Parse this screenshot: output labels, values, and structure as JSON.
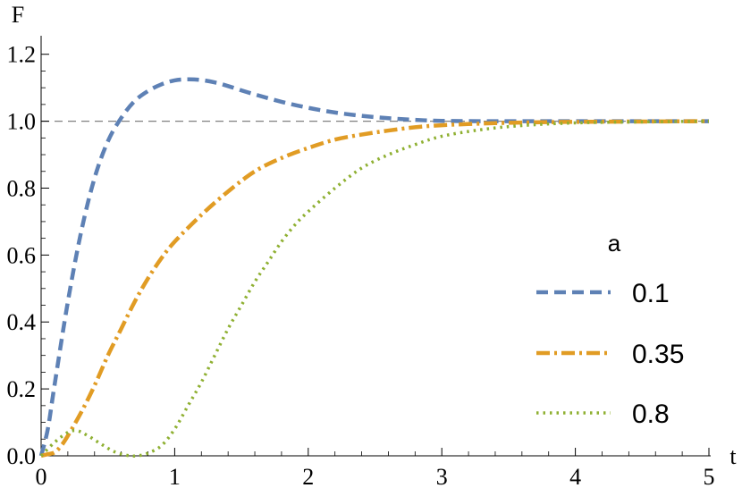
{
  "chart_data": {
    "type": "line",
    "xlabel": "t",
    "ylabel": "F",
    "xlim": [
      0,
      5
    ],
    "ylim": [
      0,
      1.25
    ],
    "x_ticks": [
      0,
      1,
      2,
      3,
      4,
      5
    ],
    "x_tick_labels": [
      "0",
      "1",
      "2",
      "3",
      "4",
      "5"
    ],
    "y_ticks": [
      0,
      0.2,
      0.4,
      0.6,
      0.8,
      1.0,
      1.2
    ],
    "y_tick_labels": [
      "0.0",
      "0.2",
      "0.4",
      "0.6",
      "0.8",
      "1.0",
      "1.2"
    ],
    "reference_line": {
      "y": 1.0,
      "style": "dashed",
      "color": "#808080"
    },
    "legend": {
      "title": "a",
      "placement": "right"
    },
    "series": [
      {
        "name": "0.1",
        "color": "#5e81b5",
        "dash": "dashed",
        "x": [
          0,
          0.05,
          0.1,
          0.2,
          0.3,
          0.4,
          0.5,
          0.6,
          0.7,
          0.8,
          0.9,
          1.0,
          1.1,
          1.2,
          1.3,
          1.4,
          1.5,
          1.6,
          1.8,
          2.0,
          2.2,
          2.4,
          2.6,
          2.8,
          3.0,
          3.3,
          3.6,
          4.0,
          4.5,
          5.0
        ],
        "y": [
          0,
          0.08,
          0.21,
          0.46,
          0.67,
          0.83,
          0.94,
          1.01,
          1.06,
          1.09,
          1.11,
          1.122,
          1.125,
          1.123,
          1.116,
          1.105,
          1.092,
          1.08,
          1.058,
          1.04,
          1.026,
          1.016,
          1.009,
          1.004,
          1.001,
          1.0,
          1.0,
          1.0,
          1.0,
          1.0
        ]
      },
      {
        "name": "0.35",
        "color": "#e19c24",
        "dash": "dash-dot",
        "x": [
          0,
          0.05,
          0.1,
          0.15,
          0.2,
          0.3,
          0.4,
          0.5,
          0.6,
          0.7,
          0.8,
          0.9,
          1.0,
          1.2,
          1.4,
          1.6,
          1.8,
          2.0,
          2.2,
          2.4,
          2.6,
          2.8,
          3.0,
          3.3,
          3.6,
          4.0,
          4.5,
          5.0
        ],
        "y": [
          0,
          0.005,
          0.01,
          0.03,
          0.06,
          0.13,
          0.21,
          0.3,
          0.38,
          0.46,
          0.53,
          0.59,
          0.64,
          0.72,
          0.79,
          0.85,
          0.89,
          0.92,
          0.945,
          0.96,
          0.972,
          0.982,
          0.988,
          0.993,
          0.996,
          0.998,
          0.999,
          1.0
        ]
      },
      {
        "name": "0.8",
        "color": "#8fb032",
        "dash": "dotted",
        "x": [
          0,
          0.1,
          0.2,
          0.27,
          0.35,
          0.45,
          0.55,
          0.65,
          0.72,
          0.8,
          0.9,
          1.0,
          1.1,
          1.2,
          1.3,
          1.4,
          1.5,
          1.6,
          1.7,
          1.8,
          1.9,
          2.0,
          2.2,
          2.4,
          2.6,
          2.8,
          3.0,
          3.3,
          3.6,
          4.0,
          4.5,
          5.0
        ],
        "y": [
          0,
          0.04,
          0.07,
          0.075,
          0.06,
          0.035,
          0.012,
          0.001,
          0.0,
          0.008,
          0.03,
          0.08,
          0.15,
          0.22,
          0.3,
          0.38,
          0.45,
          0.52,
          0.58,
          0.64,
          0.69,
          0.73,
          0.8,
          0.86,
          0.9,
          0.93,
          0.955,
          0.975,
          0.987,
          0.995,
          0.998,
          1.0
        ]
      }
    ]
  }
}
